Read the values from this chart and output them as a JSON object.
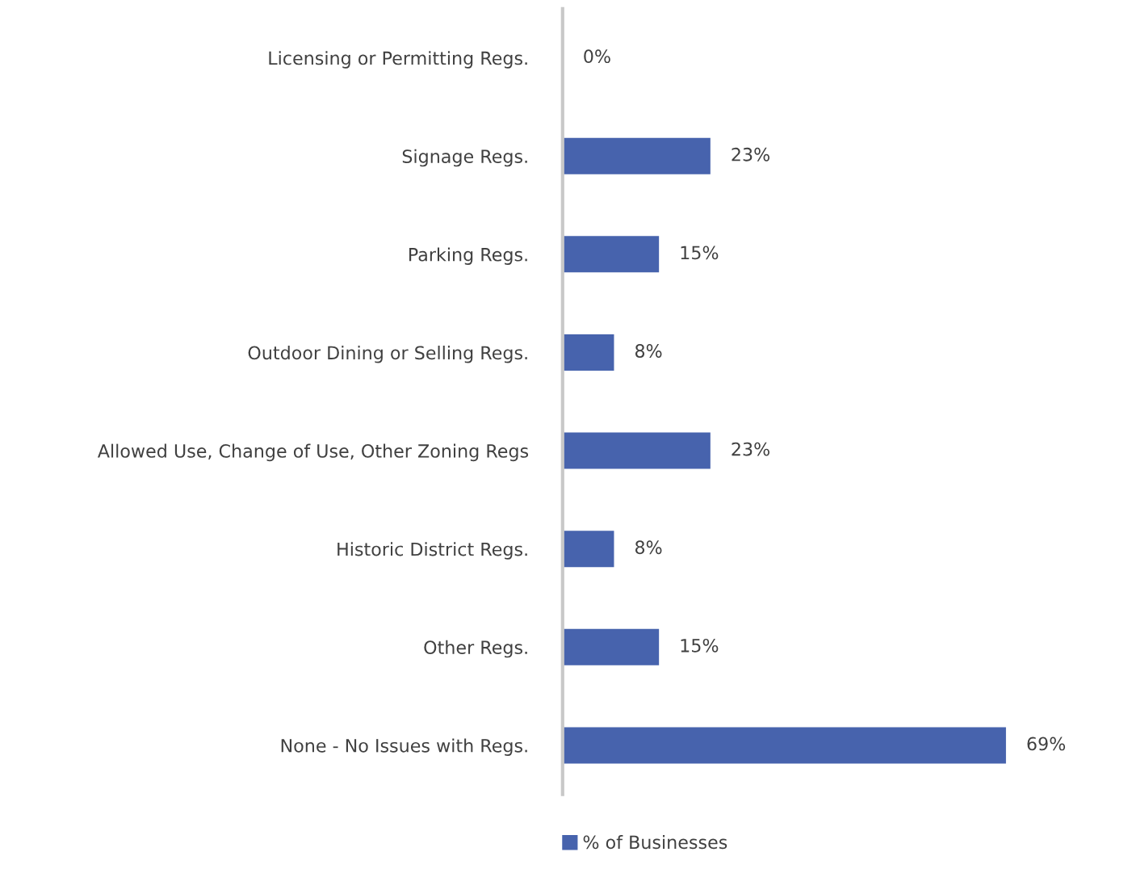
{
  "chart_data": {
    "type": "bar",
    "orientation": "horizontal",
    "categories": [
      "Licensing or Permitting Regs.",
      "Signage Regs.",
      "Parking Regs.",
      "Outdoor Dining or Selling Regs.",
      "Allowed Use, Change of Use, Other Zoning Regs",
      "Historic District Regs.",
      "Other Regs.",
      "None - No Issues with Regs."
    ],
    "series": [
      {
        "name": "% of Businesses",
        "color": "#4763ad",
        "values": [
          0,
          23,
          15,
          8,
          23,
          8,
          15,
          69
        ],
        "value_labels": [
          "0%",
          "23%",
          "15%",
          "8%",
          "23%",
          "8%",
          "15%",
          "69%"
        ]
      }
    ],
    "legend": "bottom",
    "grid": false
  }
}
